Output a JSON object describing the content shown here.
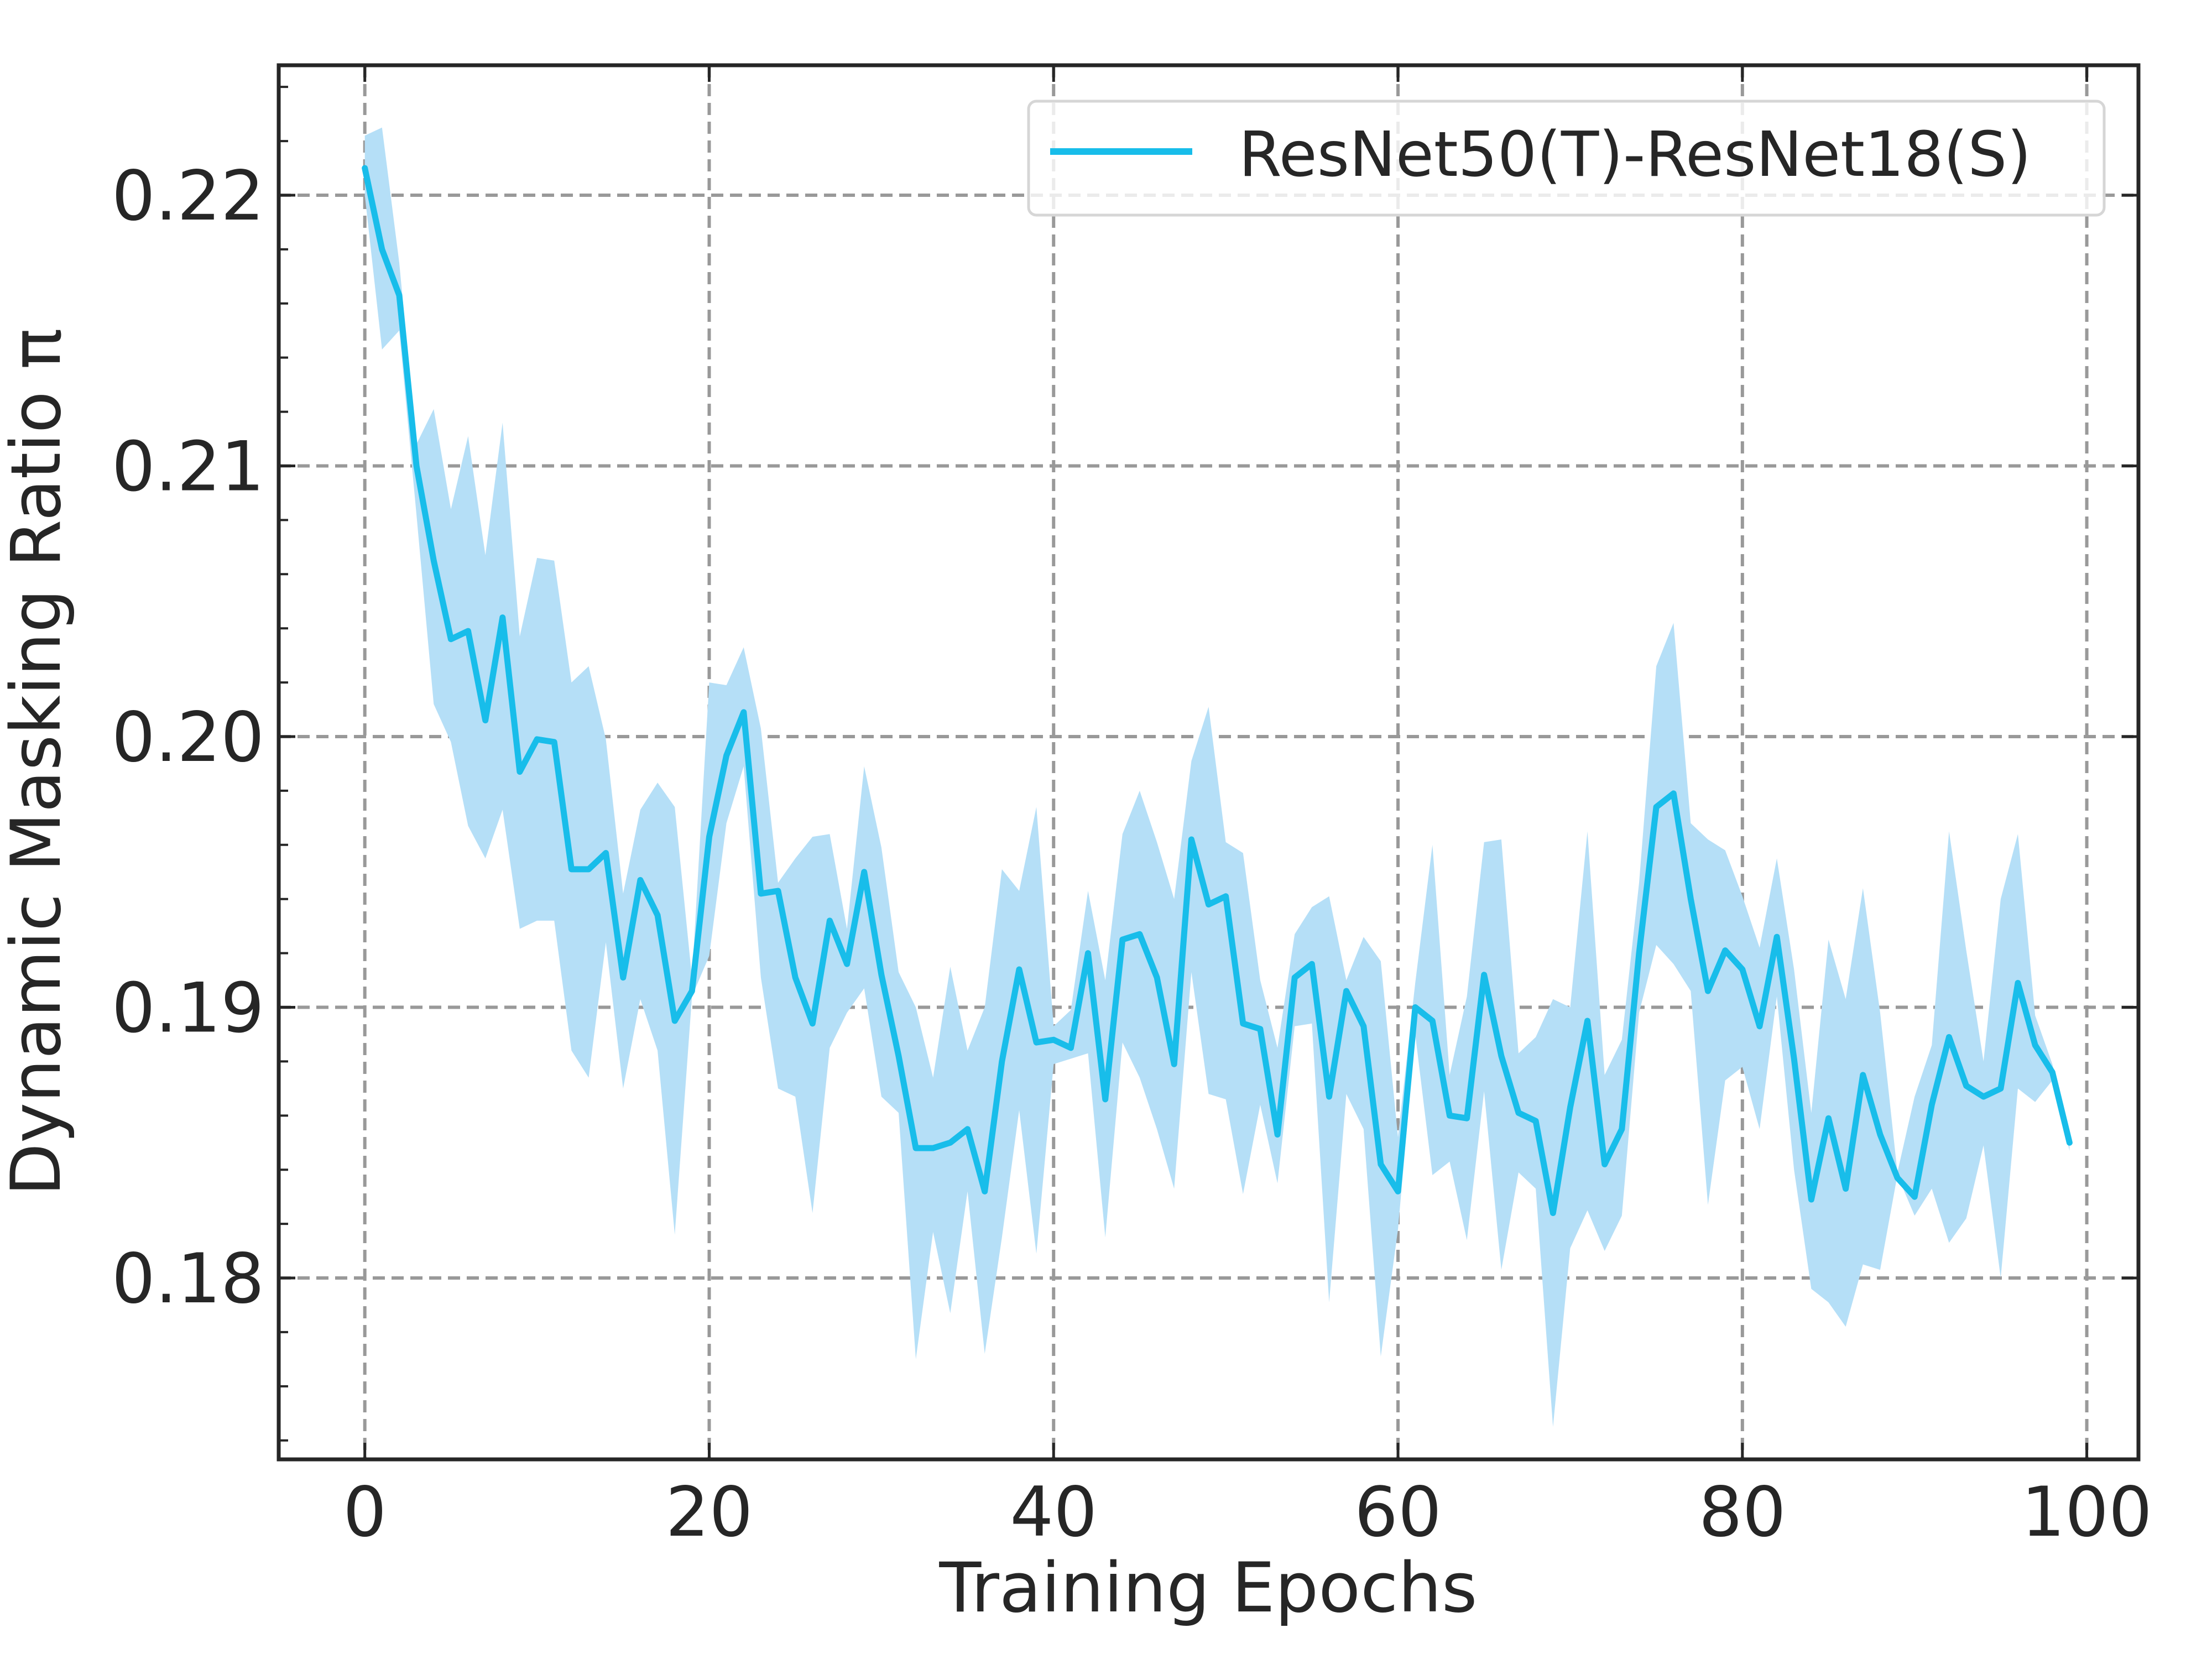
{
  "chart_data": {
    "type": "line",
    "title": "",
    "xlabel": "Training Epochs",
    "ylabel": "Dynamic Masking Ratio π",
    "xlim": [
      -5,
      103
    ],
    "ylim": [
      0.1733,
      0.2248
    ],
    "xticks": [
      0,
      20,
      40,
      60,
      80,
      100
    ],
    "xtick_labels": [
      "0",
      "20",
      "40",
      "60",
      "80",
      "100"
    ],
    "yticks": [
      0.18,
      0.19,
      0.2,
      0.21,
      0.22
    ],
    "ytick_labels": [
      "0.18",
      "0.19",
      "0.20",
      "0.21",
      "0.22"
    ],
    "y_minor_step": 0.002,
    "grid": true,
    "legend_position": "top-right",
    "colors": {
      "line": "#18bdea",
      "band": "#b5dff7",
      "grid": "#999999",
      "frame": "#262626"
    },
    "series": [
      {
        "name": "ResNet50(T)-ResNet18(S)",
        "x": [
          0,
          1,
          2,
          3,
          4,
          5,
          6,
          7,
          8,
          9,
          10,
          11,
          12,
          13,
          14,
          15,
          16,
          17,
          18,
          19,
          20,
          21,
          22,
          23,
          24,
          25,
          26,
          27,
          28,
          29,
          30,
          31,
          32,
          33,
          34,
          35,
          36,
          37,
          38,
          39,
          40,
          41,
          42,
          43,
          44,
          45,
          46,
          47,
          48,
          49,
          50,
          51,
          52,
          53,
          54,
          55,
          56,
          57,
          58,
          59,
          60,
          61,
          62,
          63,
          64,
          65,
          66,
          67,
          68,
          69,
          70,
          71,
          72,
          73,
          74,
          75,
          76,
          77,
          78,
          79,
          80,
          81,
          82,
          83,
          84,
          85,
          86,
          87,
          88,
          89,
          90,
          91,
          92,
          93,
          94,
          95,
          96,
          97,
          98,
          99
        ],
        "mean": [
          0.221,
          0.218,
          0.2163,
          0.21,
          0.2065,
          0.2036,
          0.2039,
          0.2006,
          0.2044,
          0.1987,
          0.1999,
          0.1998,
          0.1951,
          0.1951,
          0.1957,
          0.1911,
          0.1947,
          0.1934,
          0.1895,
          0.1906,
          0.1963,
          0.1993,
          0.2009,
          0.1942,
          0.1943,
          0.1911,
          0.1894,
          0.1932,
          0.1916,
          0.195,
          0.1912,
          0.1882,
          0.1848,
          0.1848,
          0.185,
          0.1855,
          0.1832,
          0.188,
          0.1914,
          0.1887,
          0.1888,
          0.1885,
          0.192,
          0.1866,
          0.1925,
          0.1927,
          0.1911,
          0.1879,
          0.1962,
          0.1938,
          0.1941,
          0.1894,
          0.1892,
          0.1853,
          0.1911,
          0.1916,
          0.1867,
          0.1906,
          0.1893,
          0.1842,
          0.1832,
          0.19,
          0.1895,
          0.186,
          0.1859,
          0.1912,
          0.1882,
          0.1861,
          0.1858,
          0.1824,
          0.1863,
          0.1895,
          0.1842,
          0.1855,
          0.192,
          0.1974,
          0.1979,
          0.194,
          0.1906,
          0.1921,
          0.1914,
          0.1893,
          0.1926,
          0.1881,
          0.1829,
          0.1859,
          0.1833,
          0.1875,
          0.1853,
          0.1837,
          0.183,
          0.1864,
          0.1889,
          0.1871,
          0.1867,
          0.187,
          0.1909,
          0.1886,
          0.1876,
          0.185
        ],
        "lower": [
          0.22,
          0.2143,
          0.215,
          0.2082,
          0.2012,
          0.1998,
          0.1967,
          0.1955,
          0.1973,
          0.1929,
          0.1932,
          0.1932,
          0.1884,
          0.1874,
          0.1924,
          0.187,
          0.1903,
          0.1884,
          0.1816,
          0.1904,
          0.1919,
          0.1968,
          0.1989,
          0.1911,
          0.187,
          0.1867,
          0.1824,
          0.1885,
          0.1898,
          0.1907,
          0.1867,
          0.1861,
          0.177,
          0.1817,
          0.1787,
          0.1832,
          0.1772,
          0.1815,
          0.1862,
          0.1809,
          0.1879,
          0.1881,
          0.1883,
          0.1815,
          0.1887,
          0.1874,
          0.1855,
          0.1833,
          0.1913,
          0.1868,
          0.1866,
          0.1831,
          0.1864,
          0.1835,
          0.1893,
          0.1894,
          0.1791,
          0.1868,
          0.1855,
          0.1771,
          0.1818,
          0.189,
          0.1838,
          0.1843,
          0.1814,
          0.1869,
          0.1803,
          0.1839,
          0.1833,
          0.1745,
          0.1811,
          0.1825,
          0.181,
          0.1823,
          0.1898,
          0.1923,
          0.1916,
          0.1906,
          0.1827,
          0.1873,
          0.1878,
          0.1855,
          0.1904,
          0.184,
          0.1796,
          0.1791,
          0.1782,
          0.1805,
          0.1803,
          0.1838,
          0.1823,
          0.1833,
          0.1813,
          0.1822,
          0.1849,
          0.18,
          0.187,
          0.1865,
          0.1873,
          0.1847
        ],
        "upper": [
          0.2222,
          0.2225,
          0.2175,
          0.2108,
          0.2121,
          0.2084,
          0.2111,
          0.2067,
          0.2116,
          0.2037,
          0.2066,
          0.2065,
          0.202,
          0.2026,
          0.1999,
          0.1942,
          0.1973,
          0.1983,
          0.1974,
          0.1911,
          0.202,
          0.2019,
          0.2033,
          0.2003,
          0.1946,
          0.1955,
          0.1963,
          0.1964,
          0.1929,
          0.1989,
          0.1959,
          0.1913,
          0.19,
          0.1874,
          0.1915,
          0.1884,
          0.19,
          0.1951,
          0.1943,
          0.1974,
          0.1893,
          0.1899,
          0.1943,
          0.191,
          0.1964,
          0.198,
          0.1961,
          0.194,
          0.1991,
          0.2011,
          0.1961,
          0.1957,
          0.191,
          0.1885,
          0.1927,
          0.1937,
          0.1941,
          0.191,
          0.1926,
          0.1917,
          0.1852,
          0.1909,
          0.196,
          0.1875,
          0.1904,
          0.1961,
          0.1962,
          0.1883,
          0.1889,
          0.1903,
          0.19,
          0.1965,
          0.1875,
          0.1888,
          0.1946,
          0.2026,
          0.2042,
          0.1968,
          0.1962,
          0.1958,
          0.1941,
          0.1922,
          0.1955,
          0.1914,
          0.1861,
          0.1925,
          0.1903,
          0.1944,
          0.1898,
          0.1839,
          0.1867,
          0.1886,
          0.1965,
          0.1921,
          0.188,
          0.194,
          0.1964,
          0.1897,
          0.1879,
          0.1852
        ]
      }
    ]
  }
}
